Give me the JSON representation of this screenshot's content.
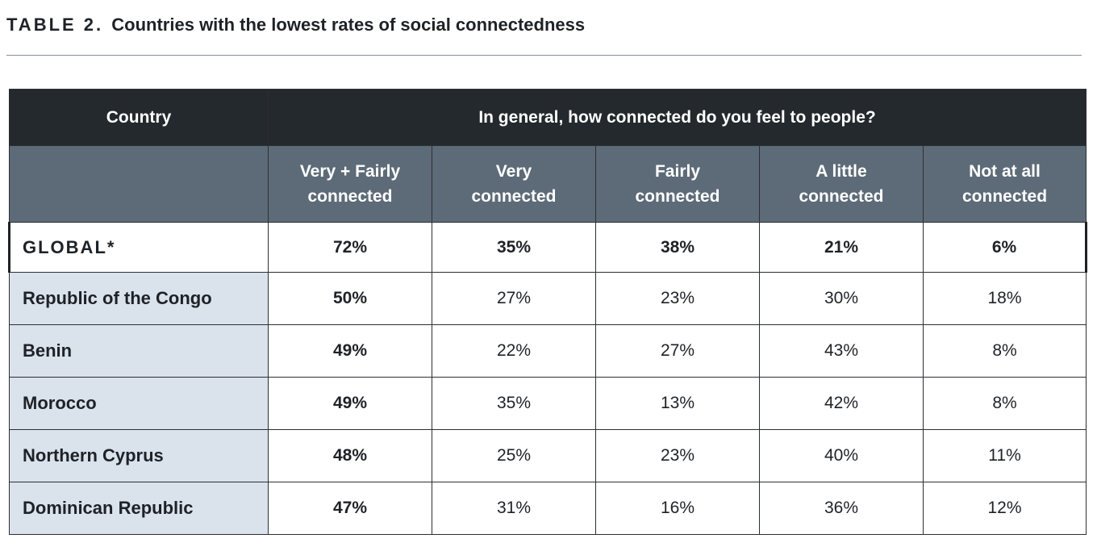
{
  "title": {
    "label": "TABLE 2.",
    "text": "Countries with the lowest rates of social connectedness"
  },
  "table": {
    "country_header": "Country",
    "question_header": "In general, how connected do you feel to people?",
    "columns": [
      {
        "line1": "Very + Fairly",
        "line2": "connected"
      },
      {
        "line1": "Very",
        "line2": "connected"
      },
      {
        "line1": "Fairly",
        "line2": "connected"
      },
      {
        "line1": "A little",
        "line2": "connected"
      },
      {
        "line1": "Not at all",
        "line2": "connected"
      }
    ],
    "global": {
      "country": "GLOBAL*",
      "values": [
        "72%",
        "35%",
        "38%",
        "21%",
        "6%"
      ]
    },
    "rows": [
      {
        "country": "Republic of the Congo",
        "values": [
          "50%",
          "27%",
          "23%",
          "30%",
          "18%"
        ]
      },
      {
        "country": "Benin",
        "values": [
          "49%",
          "22%",
          "27%",
          "43%",
          "8%"
        ]
      },
      {
        "country": "Morocco",
        "values": [
          "49%",
          "35%",
          "13%",
          "42%",
          "8%"
        ]
      },
      {
        "country": "Northern Cyprus",
        "values": [
          "48%",
          "25%",
          "23%",
          "40%",
          "11%"
        ]
      },
      {
        "country": "Dominican Republic",
        "values": [
          "47%",
          "31%",
          "16%",
          "36%",
          "12%"
        ]
      }
    ]
  },
  "colors": {
    "header_dark": "#24292d",
    "header_sub": "#5d6b78",
    "country_cell": "#dae2ec"
  }
}
